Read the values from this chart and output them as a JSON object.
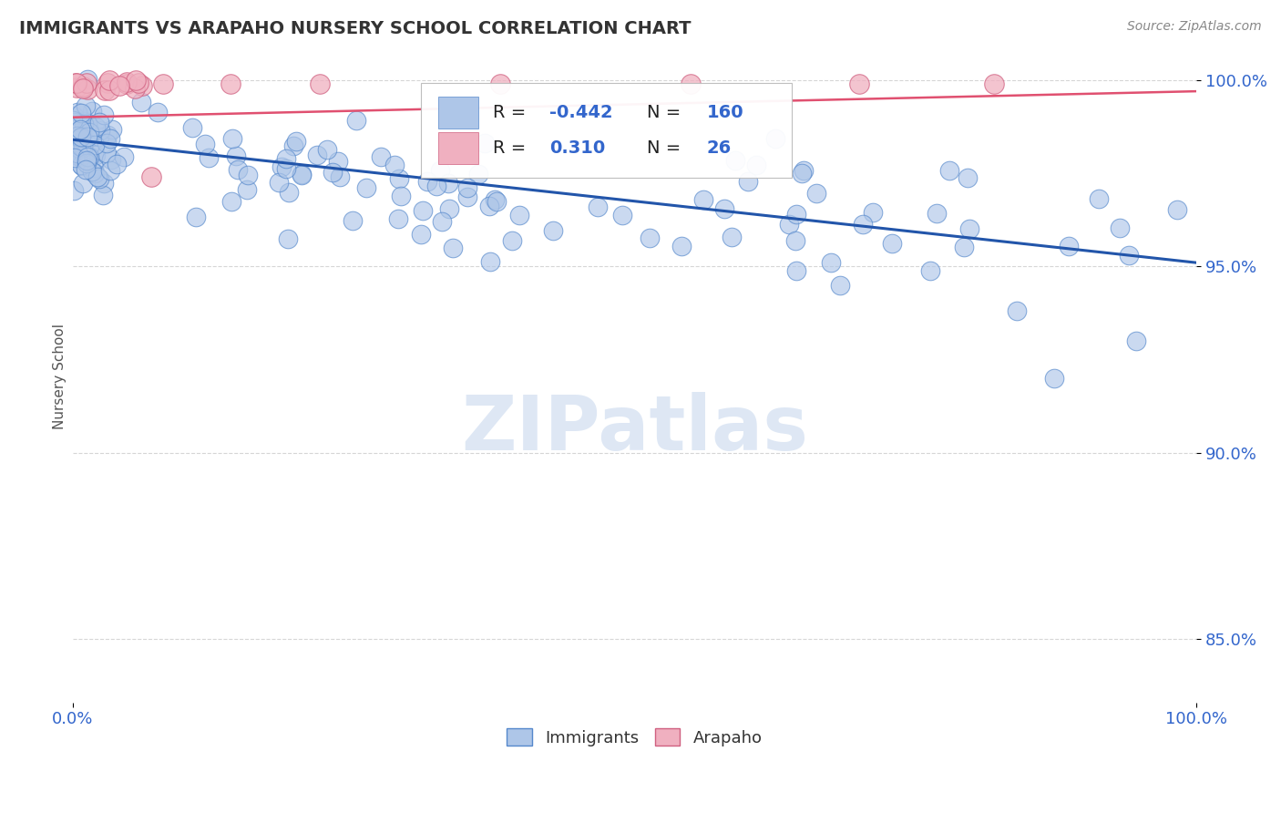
{
  "title": "IMMIGRANTS VS ARAPAHO NURSERY SCHOOL CORRELATION CHART",
  "source_text": "Source: ZipAtlas.com",
  "ylabel": "Nursery School",
  "watermark": "ZIPatlas",
  "xlim": [
    0.0,
    1.0
  ],
  "ylim": [
    0.833,
    1.008
  ],
  "yticks": [
    0.85,
    0.9,
    0.95,
    1.0
  ],
  "ytick_labels": [
    "85.0%",
    "90.0%",
    "95.0%",
    "100.0%"
  ],
  "xtick_labels": [
    "0.0%",
    "100.0%"
  ],
  "scatter_blue_color": "#aec6e8",
  "scatter_blue_edge": "#5588cc",
  "scatter_pink_color": "#f0b0c0",
  "scatter_pink_edge": "#d06080",
  "trend_blue_color": "#2255aa",
  "trend_pink_color": "#e05070",
  "grid_color": "#cccccc",
  "axis_color": "#3366cc",
  "title_color": "#333333",
  "source_color": "#888888",
  "watermark_color": "#c8d8ee",
  "legend_text_color": "#222222",
  "legend_value_color": "#3366cc",
  "blue_r": "-0.442",
  "blue_n": "160",
  "pink_r": "0.310",
  "pink_n": "26",
  "blue_trend_y0": 0.984,
  "blue_trend_y1": 0.951,
  "pink_trend_y0": 0.99,
  "pink_trend_y1": 0.997
}
